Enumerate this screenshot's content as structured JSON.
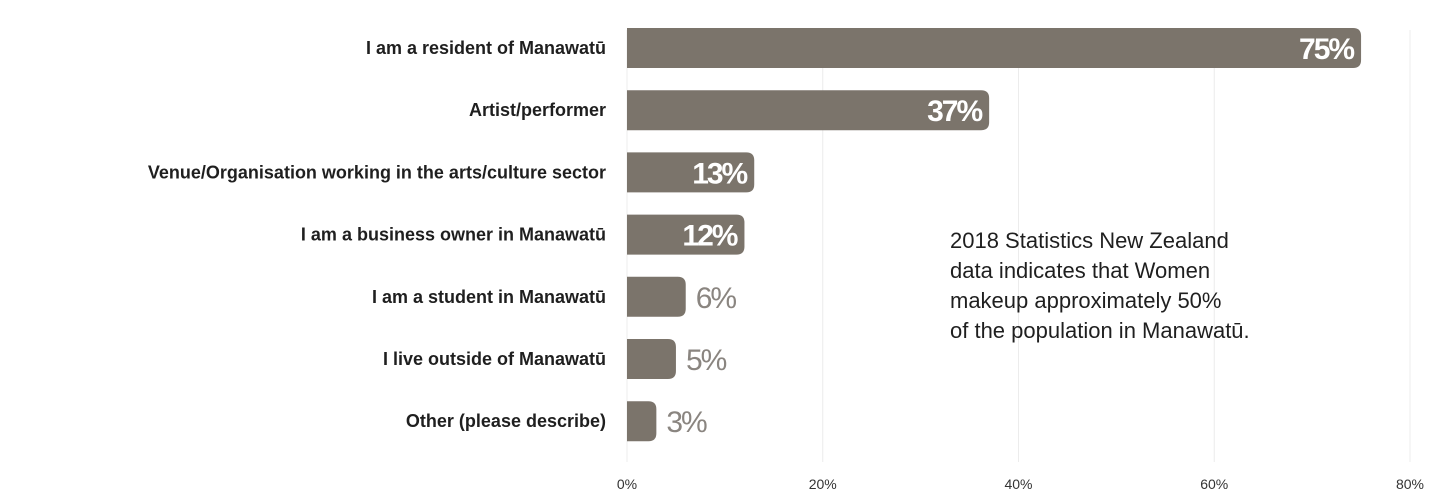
{
  "chart_data": {
    "type": "bar",
    "orientation": "horizontal",
    "categories": [
      "I am a resident of Manawatū",
      "Artist/performer",
      "Venue/Organisation working in the arts/culture sector",
      "I am a business owner in Manawatū",
      "I am a student in Manawatū",
      "I live outside of Manawatū",
      "Other (please describe)"
    ],
    "values": [
      75,
      37,
      13,
      12,
      6,
      5,
      3
    ],
    "value_labels": [
      "75%",
      "37%",
      "13%",
      "12%",
      "6%",
      "5%",
      "3%"
    ],
    "xlim": [
      0,
      80
    ],
    "xticks": [
      0,
      20,
      40,
      60,
      80
    ],
    "xtick_labels": [
      "0%",
      "20%",
      "40%",
      "60%",
      "80%"
    ],
    "grid": "vertical",
    "title": "",
    "xlabel": "",
    "ylabel": "",
    "colors": {
      "bar": "#7b746b",
      "gridline": "#ececec",
      "label_outside": "#8a8580"
    }
  },
  "annotation": {
    "lines": [
      "2018 Statistics New Zealand",
      "data indicates that Women",
      "makeup approximately 50%",
      "of the population in Manawatū."
    ]
  }
}
